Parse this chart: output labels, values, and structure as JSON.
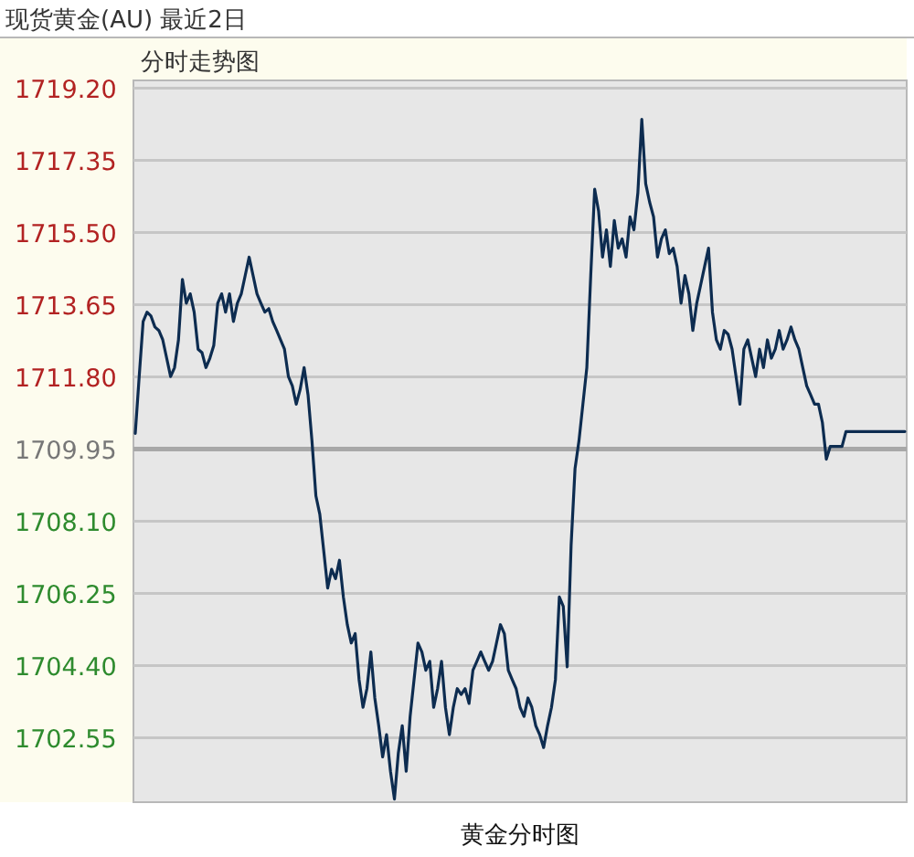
{
  "chart_data": {
    "type": "line",
    "title": "现货黄金(AU) 最近2日",
    "subtitle": "分时走势图",
    "xlabel": "黄金分时图",
    "categories": [
      null,
      null,
      null,
      null,
      null,
      null,
      null,
      null,
      null,
      null,
      null,
      null,
      null,
      null,
      null,
      null,
      null,
      null,
      null,
      null,
      null,
      null,
      null,
      null,
      null,
      null,
      null,
      null,
      null,
      null,
      null,
      null,
      null,
      null,
      null,
      null,
      null,
      null,
      null,
      null,
      null,
      null,
      null,
      null,
      null,
      null,
      null,
      null,
      null,
      null,
      null,
      null,
      null,
      null,
      null,
      null,
      null,
      null,
      null,
      null,
      null,
      null,
      null,
      null,
      null,
      null,
      null,
      null,
      null,
      null,
      null,
      null,
      null,
      null,
      null,
      null,
      null,
      null,
      null,
      null,
      null,
      null,
      null,
      null,
      null,
      null,
      null,
      null,
      null,
      null,
      null,
      null,
      null,
      null,
      null,
      null,
      null,
      null,
      null,
      null,
      null,
      null,
      null,
      null,
      null,
      null,
      null,
      null,
      null,
      null,
      null,
      null,
      null,
      null,
      null,
      null,
      null,
      null,
      null,
      null,
      null,
      null,
      null,
      null,
      null,
      null,
      null,
      null,
      null,
      null,
      null,
      null,
      null,
      null,
      null,
      null,
      null,
      null,
      null,
      null,
      null,
      null,
      null,
      null,
      null,
      null,
      null,
      null,
      null,
      null,
      null,
      null,
      null,
      null,
      null,
      null,
      null,
      null,
      null,
      null,
      null,
      null,
      null,
      null,
      null,
      null,
      null,
      null,
      null,
      null,
      null,
      null,
      null,
      null,
      null,
      null,
      null,
      null,
      null,
      null,
      null,
      null,
      null,
      null,
      null,
      null,
      null,
      null,
      null,
      null,
      null,
      null,
      null,
      null,
      null,
      null,
      null
    ],
    "series": [
      {
        "color": "#0d2c50",
        "values": [
          1710.35,
          1711.81,
          1713.22,
          1713.46,
          1713.36,
          1713.08,
          1712.99,
          1712.75,
          1712.28,
          1711.81,
          1712.04,
          1712.75,
          1714.3,
          1713.69,
          1713.93,
          1713.46,
          1712.51,
          1712.42,
          1712.04,
          1712.28,
          1712.61,
          1713.69,
          1713.93,
          1713.46,
          1713.93,
          1713.22,
          1713.69,
          1713.93,
          1714.4,
          1714.87,
          1714.4,
          1713.93,
          1713.69,
          1713.46,
          1713.55,
          1713.22,
          1712.99,
          1712.75,
          1712.51,
          1711.81,
          1711.57,
          1711.1,
          1711.48,
          1712.04,
          1711.34,
          1710.16,
          1708.75,
          1708.28,
          1707.34,
          1706.39,
          1706.87,
          1706.63,
          1707.1,
          1706.16,
          1705.45,
          1704.98,
          1705.22,
          1704.04,
          1703.33,
          1703.81,
          1704.75,
          1703.57,
          1702.86,
          1702.06,
          1702.63,
          1701.69,
          1700.98,
          1702.16,
          1702.86,
          1701.69,
          1703.1,
          1704.04,
          1704.98,
          1704.75,
          1704.28,
          1704.51,
          1703.33,
          1703.81,
          1704.51,
          1703.33,
          1702.63,
          1703.33,
          1703.81,
          1703.66,
          1703.81,
          1703.43,
          1704.28,
          1704.51,
          1704.75,
          1704.51,
          1704.28,
          1704.51,
          1704.98,
          1705.45,
          1705.22,
          1704.28,
          1704.04,
          1703.81,
          1703.33,
          1703.1,
          1703.57,
          1703.33,
          1702.86,
          1702.63,
          1702.3,
          1702.86,
          1703.33,
          1704.04,
          1706.16,
          1705.92,
          1704.37,
          1707.48,
          1709.45,
          1710.16,
          1711.1,
          1712.04,
          1714.4,
          1716.61,
          1716.05,
          1714.87,
          1715.57,
          1714.63,
          1715.81,
          1715.1,
          1715.34,
          1714.87,
          1715.9,
          1715.57,
          1716.52,
          1718.4,
          1716.75,
          1716.28,
          1715.9,
          1714.87,
          1715.34,
          1715.57,
          1714.96,
          1715.1,
          1714.63,
          1713.69,
          1714.4,
          1713.93,
          1712.99,
          1713.69,
          1714.16,
          1714.63,
          1715.1,
          1713.46,
          1712.75,
          1712.51,
          1712.99,
          1712.89,
          1712.51,
          1711.81,
          1711.1,
          1712.51,
          1712.75,
          1712.28,
          1711.81,
          1712.51,
          1712.04,
          1712.75,
          1712.28,
          1712.51,
          1712.99,
          1712.51,
          1712.75,
          1713.08,
          1712.75,
          1712.51,
          1712.04,
          1711.57,
          1711.34,
          1711.1,
          1711.1,
          1710.63,
          1709.69,
          1710.02,
          1710.02,
          1710.02,
          1710.02,
          1710.4,
          1710.4,
          1710.4,
          1710.4,
          1710.4,
          1710.4,
          1710.4,
          1710.4,
          1710.4,
          1710.4,
          1710.4,
          1710.4,
          1710.4,
          1710.4,
          1710.4,
          1710.4
        ]
      }
    ],
    "ylim": [
      1700.9,
      1719.4
    ],
    "yticks": [
      {
        "value": 1719.2,
        "label": "1719.20"
      },
      {
        "value": 1717.35,
        "label": "1717.35"
      },
      {
        "value": 1715.5,
        "label": "1715.50"
      },
      {
        "value": 1713.65,
        "label": "1713.65"
      },
      {
        "value": 1711.8,
        "label": "1711.80"
      },
      {
        "value": 1709.95,
        "label": "1709.95"
      },
      {
        "value": 1708.1,
        "label": "1708.10"
      },
      {
        "value": 1706.25,
        "label": "1706.25"
      },
      {
        "value": 1704.4,
        "label": "1704.40"
      },
      {
        "value": 1702.55,
        "label": "1702.55"
      }
    ],
    "grid": "y",
    "line_style": "solid",
    "ref_lines": [
      {
        "axis": "y",
        "value": 1709.95,
        "color": "#a8a8a8"
      }
    ]
  }
}
